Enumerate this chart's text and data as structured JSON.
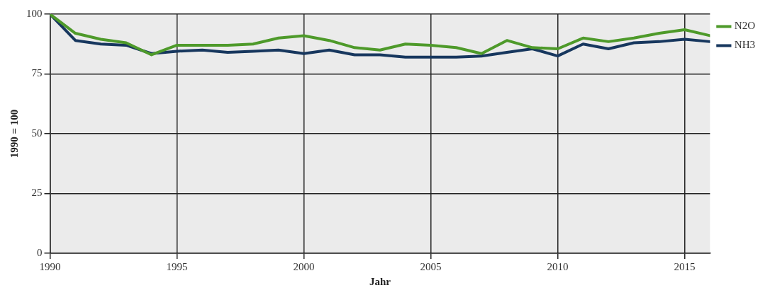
{
  "chart_data": {
    "type": "line",
    "xlabel": "Jahr",
    "ylabel": "1990 = 100",
    "x": [
      1990,
      1991,
      1992,
      1993,
      1994,
      1995,
      1996,
      1997,
      1998,
      1999,
      2000,
      2001,
      2002,
      2003,
      2004,
      2005,
      2006,
      2007,
      2008,
      2009,
      2010,
      2011,
      2012,
      2013,
      2014,
      2015,
      2016
    ],
    "series": [
      {
        "name": "N2O",
        "color": "#4e9a2a",
        "values": [
          100,
          92,
          89.5,
          88,
          83,
          87,
          87,
          87,
          87.5,
          90,
          91,
          89,
          86,
          85,
          87.5,
          87,
          86,
          83.5,
          89,
          86,
          85.5,
          90,
          88.5,
          90,
          92,
          93.5,
          91
        ]
      },
      {
        "name": "NH3",
        "color": "#17375e",
        "values": [
          100,
          89,
          87.5,
          87,
          83.5,
          84.5,
          85,
          84,
          84.5,
          85,
          83.5,
          85,
          83,
          83,
          82,
          82,
          82,
          82.5,
          84,
          85.5,
          82.5,
          87.5,
          85.5,
          88,
          88.5,
          89.5,
          88.5
        ]
      }
    ],
    "xlim": [
      1990,
      2016
    ],
    "xticks": [
      1990,
      1995,
      2000,
      2005,
      2010,
      2015
    ],
    "ylim": [
      0,
      100
    ],
    "yticks": [
      0,
      25,
      50,
      75,
      100
    ],
    "grid": true,
    "legend": "top right",
    "marker": "none",
    "line_style": "solid"
  }
}
